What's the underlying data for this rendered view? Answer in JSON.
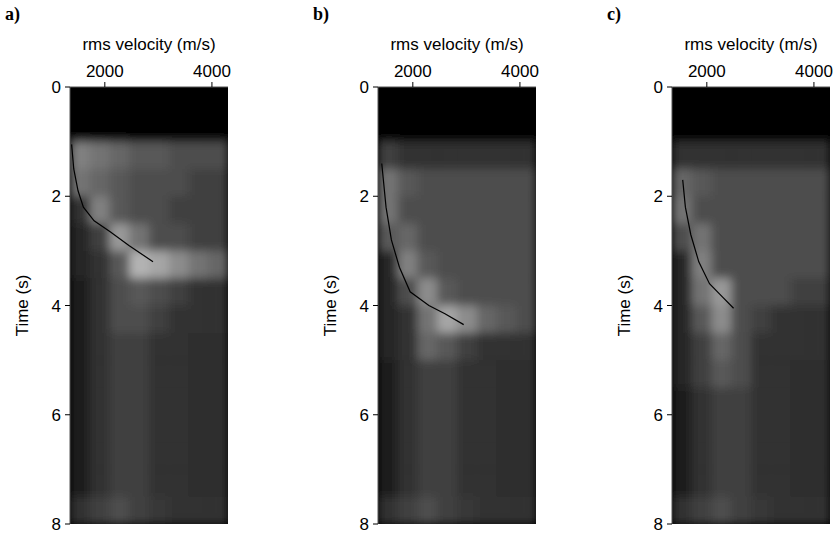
{
  "chart_data": [
    {
      "type": "heatmap",
      "title": "a)",
      "xlabel": "rms velocity (m/s)",
      "ylabel": "Time (s)",
      "xlim": [
        1350,
        4300
      ],
      "ylim": [
        0,
        8
      ],
      "xticks": [
        2000,
        4000
      ],
      "yticks": [
        0,
        2,
        4,
        6,
        8
      ],
      "cell_x": [
        1350,
        1719,
        2088,
        2457,
        2826,
        3194,
        3563,
        3932,
        4300
      ],
      "cell_y": [
        0,
        0.5,
        1,
        1.5,
        2,
        2.5,
        3,
        3.5,
        4,
        4.5,
        5,
        5.5,
        6,
        6.5,
        7,
        7.5,
        8
      ],
      "cells": [
        [
          0,
          0,
          0,
          0,
          0,
          0,
          0,
          0
        ],
        [
          0,
          0,
          0,
          0,
          0,
          0,
          0,
          0
        ],
        [
          0.5,
          0.45,
          0.4,
          0.35,
          0.35,
          0.3,
          0.3,
          0.3
        ],
        [
          0.45,
          0.4,
          0.35,
          0.3,
          0.3,
          0.3,
          0.25,
          0.25
        ],
        [
          0.2,
          0.5,
          0.35,
          0.3,
          0.3,
          0.25,
          0.25,
          0.25
        ],
        [
          0.15,
          0.25,
          0.6,
          0.45,
          0.3,
          0.3,
          0.25,
          0.25
        ],
        [
          0.15,
          0.2,
          0.35,
          0.7,
          0.65,
          0.55,
          0.45,
          0.4
        ],
        [
          0.12,
          0.2,
          0.3,
          0.35,
          0.3,
          0.25,
          0.2,
          0.2
        ],
        [
          0.12,
          0.2,
          0.3,
          0.3,
          0.25,
          0.2,
          0.2,
          0.2
        ],
        [
          0.12,
          0.2,
          0.25,
          0.25,
          0.2,
          0.2,
          0.18,
          0.18
        ],
        [
          0.12,
          0.2,
          0.25,
          0.25,
          0.2,
          0.2,
          0.18,
          0.18
        ],
        [
          0.12,
          0.2,
          0.25,
          0.25,
          0.2,
          0.2,
          0.18,
          0.18
        ],
        [
          0.12,
          0.2,
          0.25,
          0.25,
          0.2,
          0.2,
          0.18,
          0.18
        ],
        [
          0.12,
          0.2,
          0.25,
          0.25,
          0.2,
          0.2,
          0.18,
          0.18
        ],
        [
          0.12,
          0.2,
          0.25,
          0.25,
          0.2,
          0.2,
          0.18,
          0.18
        ],
        [
          0.2,
          0.25,
          0.3,
          0.25,
          0.22,
          0.2,
          0.2,
          0.2
        ]
      ],
      "series": [
        {
          "color": "#000000",
          "x": [
            1380,
            1420,
            1500,
            1600,
            1800,
            2100,
            2450,
            2900
          ],
          "values": [
            1.05,
            1.5,
            1.9,
            2.2,
            2.45,
            2.65,
            2.9,
            3.2
          ]
        }
      ]
    },
    {
      "type": "heatmap",
      "title": "b)",
      "xlabel": "rms velocity (m/s)",
      "ylabel": "Time (s)",
      "xlim": [
        1350,
        4300
      ],
      "ylim": [
        0,
        8
      ],
      "xticks": [
        2000,
        4000
      ],
      "yticks": [
        0,
        2,
        4,
        6,
        8
      ],
      "cell_x": [
        1350,
        1719,
        2088,
        2457,
        2826,
        3194,
        3563,
        3932,
        4300
      ],
      "cell_y": [
        0,
        0.5,
        1,
        1.5,
        2,
        2.5,
        3,
        3.5,
        4,
        4.5,
        5,
        5.5,
        6,
        6.5,
        7,
        7.5,
        8
      ],
      "cells": [
        [
          0,
          0,
          0,
          0,
          0,
          0,
          0,
          0
        ],
        [
          0,
          0,
          0,
          0,
          0,
          0,
          0,
          0
        ],
        [
          0.25,
          0.2,
          0.2,
          0.2,
          0.2,
          0.2,
          0.2,
          0.2
        ],
        [
          0.45,
          0.35,
          0.3,
          0.3,
          0.3,
          0.3,
          0.3,
          0.3
        ],
        [
          0.45,
          0.3,
          0.3,
          0.3,
          0.3,
          0.3,
          0.3,
          0.3
        ],
        [
          0.35,
          0.4,
          0.3,
          0.3,
          0.3,
          0.3,
          0.3,
          0.3
        ],
        [
          0.15,
          0.5,
          0.35,
          0.3,
          0.3,
          0.3,
          0.3,
          0.3
        ],
        [
          0.15,
          0.3,
          0.55,
          0.35,
          0.3,
          0.3,
          0.3,
          0.3
        ],
        [
          0.15,
          0.2,
          0.45,
          0.65,
          0.55,
          0.4,
          0.35,
          0.3
        ],
        [
          0.15,
          0.2,
          0.4,
          0.35,
          0.25,
          0.2,
          0.2,
          0.2
        ],
        [
          0.12,
          0.2,
          0.25,
          0.25,
          0.2,
          0.2,
          0.18,
          0.18
        ],
        [
          0.12,
          0.2,
          0.25,
          0.25,
          0.2,
          0.2,
          0.18,
          0.18
        ],
        [
          0.12,
          0.2,
          0.25,
          0.25,
          0.2,
          0.2,
          0.18,
          0.18
        ],
        [
          0.12,
          0.2,
          0.25,
          0.25,
          0.2,
          0.2,
          0.18,
          0.18
        ],
        [
          0.12,
          0.2,
          0.25,
          0.25,
          0.2,
          0.2,
          0.18,
          0.18
        ],
        [
          0.2,
          0.25,
          0.3,
          0.25,
          0.22,
          0.2,
          0.2,
          0.2
        ]
      ],
      "series": [
        {
          "color": "#000000",
          "x": [
            1420,
            1500,
            1600,
            1750,
            1950,
            2300,
            2600,
            2950
          ],
          "values": [
            1.4,
            2.2,
            2.8,
            3.3,
            3.75,
            4.0,
            4.15,
            4.35
          ]
        }
      ]
    },
    {
      "type": "heatmap",
      "title": "c)",
      "xlabel": "rms velocity (m/s)",
      "ylabel": "Time (s)",
      "xlim": [
        1350,
        4300
      ],
      "ylim": [
        0,
        8
      ],
      "xticks": [
        2000,
        4000
      ],
      "yticks": [
        0,
        2,
        4,
        6,
        8
      ],
      "cell_x": [
        1350,
        1719,
        2088,
        2457,
        2826,
        3194,
        3563,
        3932,
        4300
      ],
      "cell_y": [
        0,
        0.5,
        1,
        1.5,
        2,
        2.5,
        3,
        3.5,
        4,
        4.5,
        5,
        5.5,
        6,
        6.5,
        7,
        7.5,
        8
      ],
      "cells": [
        [
          0,
          0,
          0,
          0,
          0,
          0,
          0,
          0
        ],
        [
          0,
          0,
          0,
          0,
          0,
          0,
          0,
          0
        ],
        [
          0.2,
          0.2,
          0.2,
          0.2,
          0.2,
          0.2,
          0.2,
          0.2
        ],
        [
          0.4,
          0.35,
          0.3,
          0.3,
          0.3,
          0.3,
          0.3,
          0.3
        ],
        [
          0.45,
          0.3,
          0.3,
          0.3,
          0.3,
          0.3,
          0.3,
          0.3
        ],
        [
          0.3,
          0.45,
          0.3,
          0.3,
          0.3,
          0.3,
          0.3,
          0.3
        ],
        [
          0.15,
          0.5,
          0.3,
          0.3,
          0.3,
          0.3,
          0.3,
          0.3
        ],
        [
          0.15,
          0.45,
          0.6,
          0.3,
          0.3,
          0.3,
          0.25,
          0.25
        ],
        [
          0.15,
          0.35,
          0.55,
          0.3,
          0.25,
          0.2,
          0.2,
          0.2
        ],
        [
          0.15,
          0.25,
          0.4,
          0.3,
          0.2,
          0.2,
          0.2,
          0.2
        ],
        [
          0.15,
          0.25,
          0.35,
          0.3,
          0.2,
          0.2,
          0.18,
          0.18
        ],
        [
          0.12,
          0.2,
          0.25,
          0.25,
          0.2,
          0.2,
          0.18,
          0.18
        ],
        [
          0.12,
          0.2,
          0.25,
          0.25,
          0.2,
          0.2,
          0.18,
          0.18
        ],
        [
          0.12,
          0.2,
          0.25,
          0.25,
          0.2,
          0.2,
          0.18,
          0.18
        ],
        [
          0.12,
          0.2,
          0.25,
          0.25,
          0.2,
          0.2,
          0.18,
          0.18
        ],
        [
          0.2,
          0.25,
          0.3,
          0.25,
          0.22,
          0.2,
          0.2,
          0.2
        ]
      ],
      "series": [
        {
          "color": "#000000",
          "x": [
            1550,
            1600,
            1700,
            1850,
            2050,
            2300,
            2500
          ],
          "values": [
            1.7,
            2.2,
            2.7,
            3.2,
            3.6,
            3.85,
            4.05
          ]
        }
      ]
    }
  ]
}
